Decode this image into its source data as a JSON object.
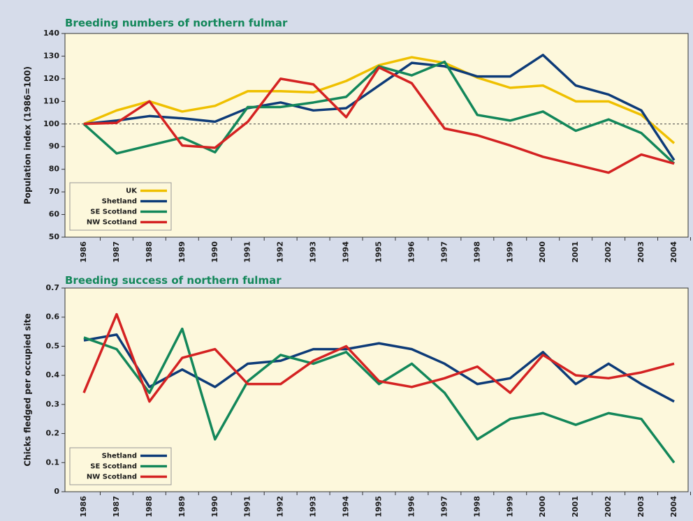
{
  "chart_data": [
    {
      "type": "line",
      "title": "Breeding numbers of northern fulmar",
      "y_label": "Population index (1986=100)",
      "categories": [
        "1986",
        "1987",
        "1988",
        "1989",
        "1990",
        "1991",
        "1992",
        "1993",
        "1994",
        "1995",
        "1996",
        "1997",
        "1998",
        "1999",
        "2000",
        "2001",
        "2002",
        "2003",
        "2004"
      ],
      "series": [
        {
          "name": "UK",
          "color": "#efc000",
          "values": [
            100,
            106,
            110,
            105.5,
            108,
            114.5,
            114.5,
            114,
            119,
            126,
            129.5,
            127,
            120.5,
            116,
            117,
            110,
            110,
            104,
            91.5
          ]
        },
        {
          "name": "Shetland",
          "color": "#0d3b78",
          "values": [
            100,
            101.5,
            103.5,
            102.5,
            101,
            107,
            109.5,
            106,
            107,
            117,
            127,
            125.5,
            121,
            121,
            130.5,
            117,
            113,
            106,
            84
          ]
        },
        {
          "name": "SE Scotland",
          "color": "#13875a",
          "values": [
            100,
            87,
            90.5,
            94,
            87.5,
            107.5,
            107.5,
            109.5,
            112,
            125.5,
            121.5,
            127.5,
            104,
            101.5,
            105.5,
            97,
            102,
            96,
            82.5
          ]
        },
        {
          "name": "NW Scotland",
          "color": "#d42222",
          "values": [
            100,
            100.5,
            110,
            90.5,
            89.5,
            101,
            120,
            117.5,
            103,
            125,
            118,
            98,
            95,
            90.5,
            85.5,
            82,
            78.5,
            86.5,
            82.5
          ]
        }
      ],
      "ylim": [
        50,
        140
      ],
      "yticks": [
        50,
        60,
        70,
        80,
        90,
        100,
        110,
        120,
        130,
        140
      ],
      "reference_line": 100,
      "legend": "lower left"
    },
    {
      "type": "line",
      "title": "Breeding success of northern fulmar",
      "y_label": "Chicks fledged per occupied site",
      "categories": [
        "1986",
        "1987",
        "1988",
        "1989",
        "1990",
        "1991",
        "1992",
        "1993",
        "1994",
        "1995",
        "1996",
        "1997",
        "1998",
        "1999",
        "2000",
        "2001",
        "2002",
        "2003",
        "2004"
      ],
      "series": [
        {
          "name": "Shetland",
          "color": "#0d3b78",
          "values": [
            0.52,
            0.54,
            0.36,
            0.42,
            0.36,
            0.44,
            0.45,
            0.49,
            0.49,
            0.51,
            0.49,
            0.44,
            0.37,
            0.39,
            0.48,
            0.37,
            0.44,
            0.37,
            0.31
          ]
        },
        {
          "name": "SE Scotland",
          "color": "#13875a",
          "values": [
            0.53,
            0.49,
            0.34,
            0.56,
            0.18,
            0.38,
            0.47,
            0.44,
            0.48,
            0.37,
            0.44,
            0.34,
            0.18,
            0.25,
            0.27,
            0.23,
            0.27,
            0.25,
            0.1
          ]
        },
        {
          "name": "NW Scotland",
          "color": "#d42222",
          "values": [
            0.34,
            0.61,
            0.31,
            0.46,
            0.49,
            0.37,
            0.37,
            0.45,
            0.5,
            0.38,
            0.36,
            0.39,
            0.43,
            0.34,
            0.47,
            0.4,
            0.39,
            0.41,
            0.44
          ]
        }
      ],
      "ylim": [
        0,
        0.7
      ],
      "yticks": [
        0,
        0.1,
        0.2,
        0.3,
        0.4,
        0.5,
        0.6,
        0.7
      ],
      "legend": "lower left"
    }
  ]
}
